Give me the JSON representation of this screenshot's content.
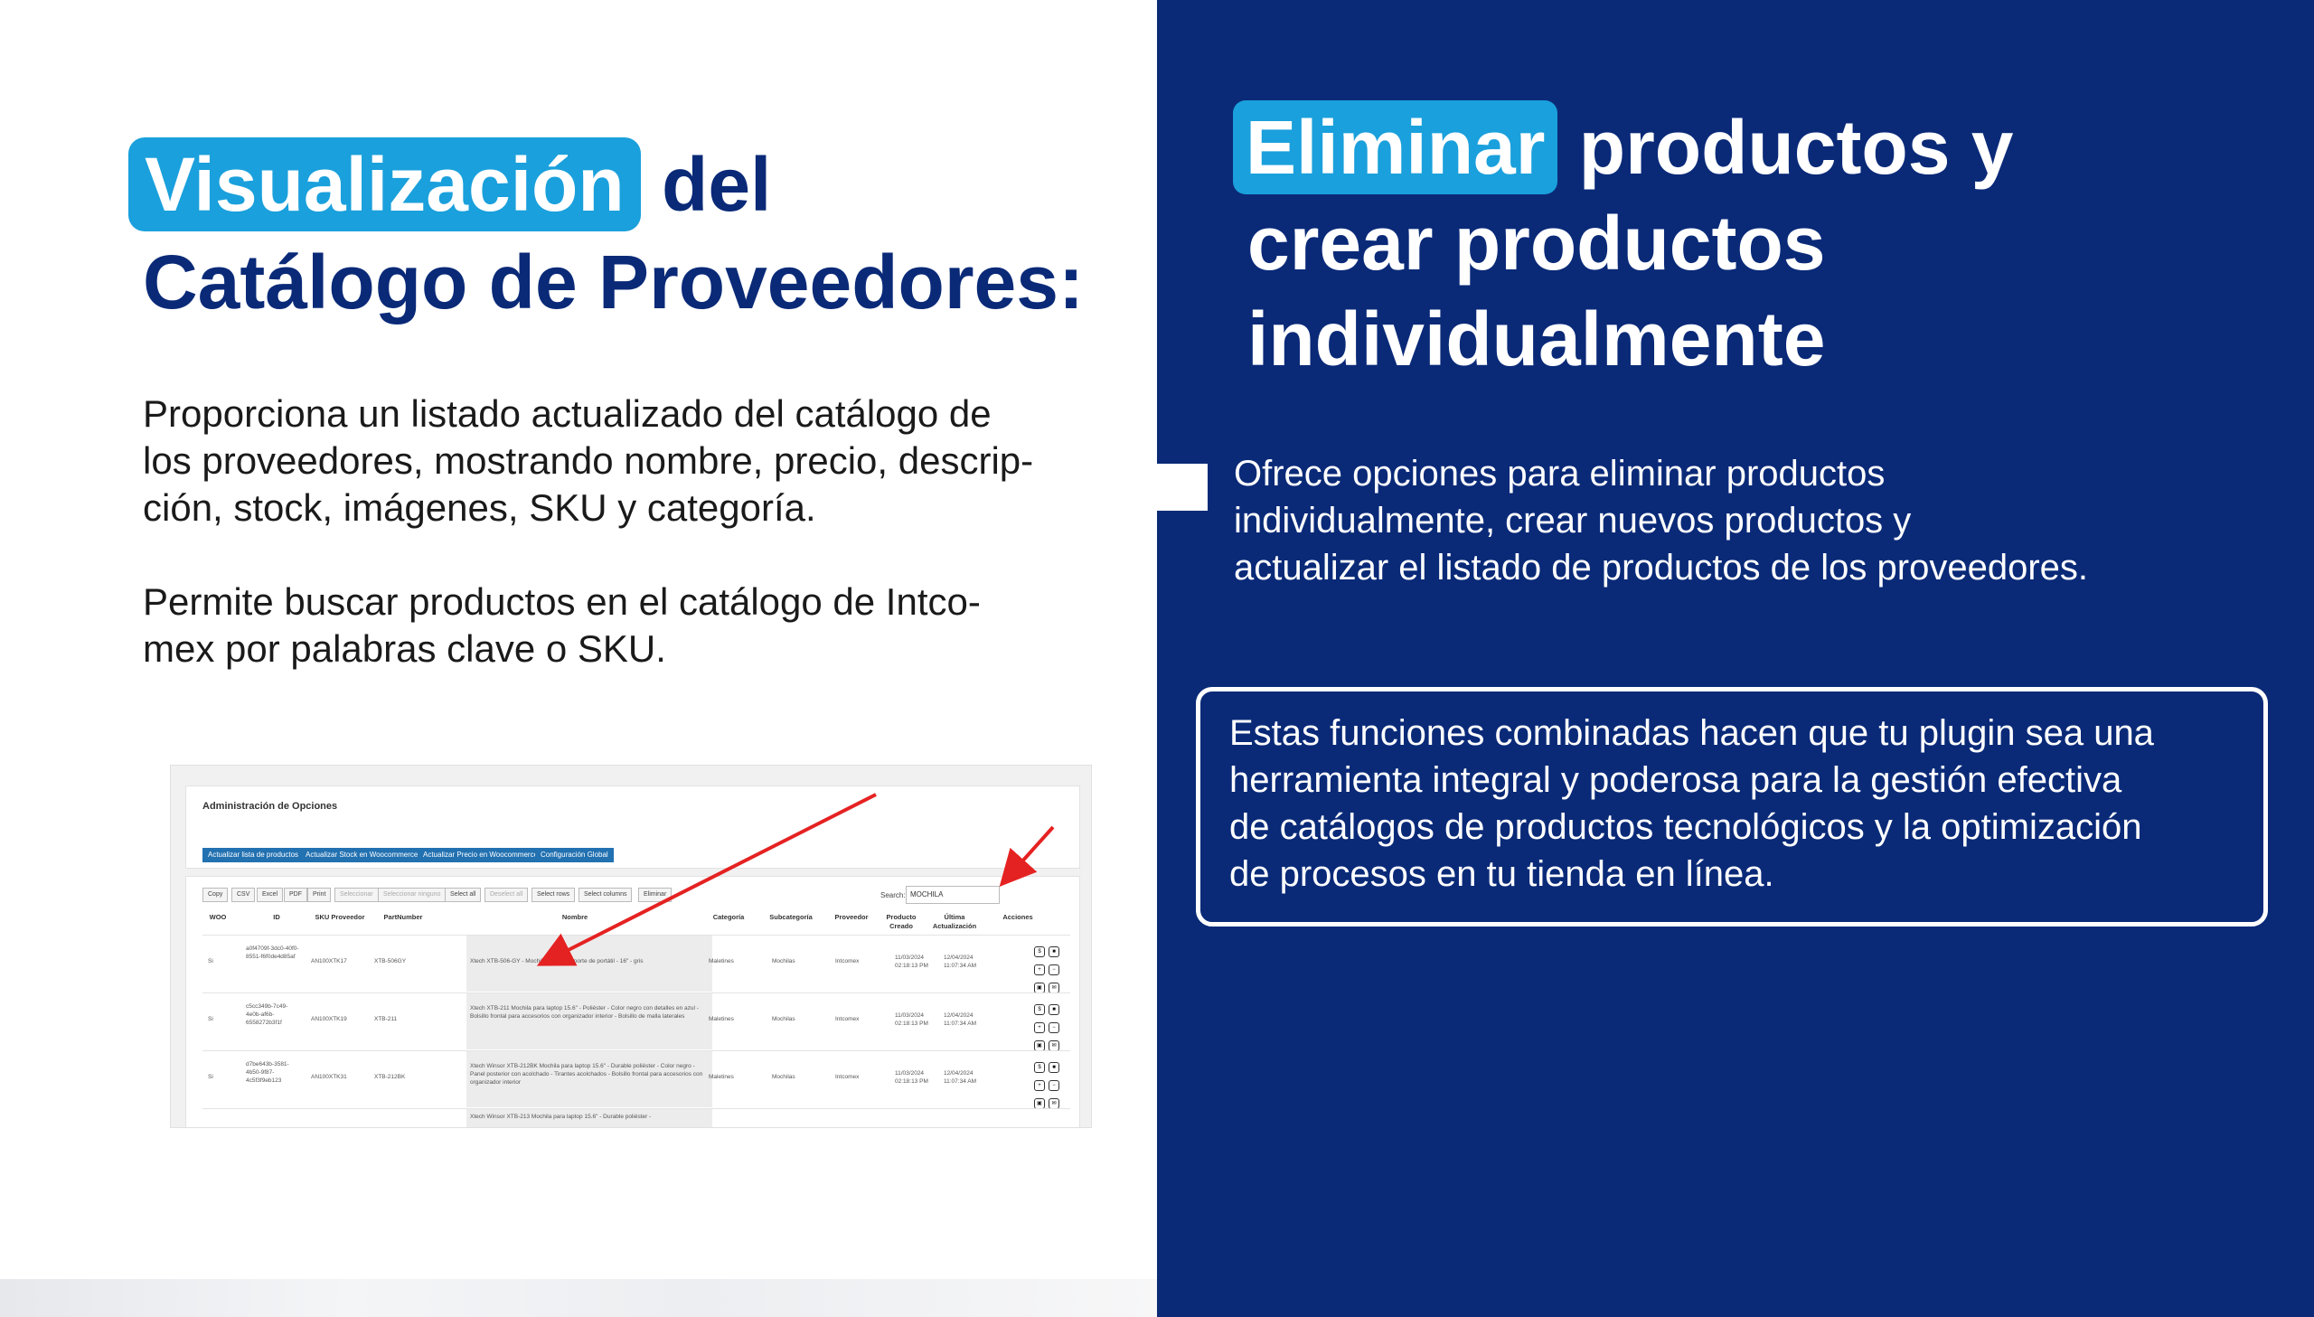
{
  "left": {
    "title_highlight": "Visualización",
    "title_rest_line1": "del",
    "title_line2": "Catálogo de Proveedores:",
    "paragraph1_lines": [
      "Proporciona un listado actualizado del catálogo de",
      "los proveedores, mostrando nombre, precio, descrip-",
      "ción, stock, imágenes, SKU y categoría."
    ],
    "paragraph2_lines": [
      "Permite buscar productos en el catálogo de Intco-",
      "mex por palabras clave o SKU."
    ]
  },
  "screenshot": {
    "panel_title": "Administración de Opciones",
    "option_buttons": [
      "Actualizar lista de productos",
      "Actualizar Stock en Woocommerce",
      "Actualizar Precio en Woocommerce",
      "Configuración Global"
    ],
    "table_buttons": [
      "Copy",
      "CSV",
      "Excel",
      "PDF",
      "Print",
      "Seleccionar",
      "Seleccionar ninguno",
      "Select all",
      "Deselect all",
      "Select rows",
      "Select columns",
      "Eliminar"
    ],
    "search_label": "Search:",
    "search_value": "MOCHILA",
    "columns": [
      "WOO",
      "ID",
      "SKU Proveedor",
      "PartNumber",
      "Nombre",
      "Categoría",
      "Subcategoría",
      "Proveedor",
      "Producto Creado",
      "Última Actualización",
      "Acciones"
    ],
    "rows": [
      {
        "woo": "Si",
        "id": "a0f4709f-3dc0-40f0-8551-f6f0de4d85af",
        "sku": "AN100XTK17",
        "part": "XTB-506GY",
        "name": "Xtech XTB-506-GY - Mochila para transporte de portátil - 16\" - gris",
        "cat": "Maletines",
        "sub": "Mochilas",
        "prov": "Intcomex",
        "created": "11/03/2024 02:18:13 PM",
        "updated": "12/04/2024 11:07:34 AM"
      },
      {
        "woo": "Si",
        "id": "c5cc349b-7c49-4e0b-af6b-6558272b3f1f",
        "sku": "AN100XTK19",
        "part": "XTB-211",
        "name": "Xtech XTB-211 Mochila para laptop 15.6\" - Poliéster - Color negro con detalles en azul - Bolsillo frontal para accesorios con organizador interior - Bolsillo de malla laterales",
        "cat": "Maletines",
        "sub": "Mochilas",
        "prov": "Intcomex",
        "created": "11/03/2024 02:18:13 PM",
        "updated": "12/04/2024 11:07:34 AM"
      },
      {
        "woo": "Si",
        "id": "d7be643b-3581-4b50-9f87-4c5f3f9eb123",
        "sku": "AN100XTK31",
        "part": "XTB-212BK",
        "name": "Xtech Winsor XTB-212BK Mochila para laptop 15.6\" - Durable poliéster - Color negro - Panel posterior con acolchado - Tirantes acolchados - Bolsillo frontal para accesorios con organizador interior",
        "cat": "Maletines",
        "sub": "Mochilas",
        "prov": "Intcomex",
        "created": "11/03/2024 02:18:13 PM",
        "updated": "12/04/2024 11:07:34 AM"
      }
    ],
    "row4_partial": "Xtech Winsor XTB-213 Mochila para laptop 15.6\" - Durable poliéster -"
  },
  "right": {
    "title_highlight": "Eliminar",
    "title_rest_line1": "productos y",
    "title_line2": "crear productos",
    "title_line3": "individualmente",
    "paragraph_lines": [
      "Ofrece opciones para eliminar productos",
      "individualmente, crear nuevos productos y",
      "actualizar el listado de productos de los proveedores."
    ],
    "box_lines": [
      "Estas funciones combinadas hacen que tu plugin sea una",
      "herramienta integral y poderosa para la gestión efectiva",
      "de catálogos de productos tecnológicos y la optimización",
      "de procesos en tu tienda en línea."
    ]
  },
  "colors": {
    "navy": "#0a2a78",
    "accent": "#1aa0dc",
    "arrow": "#e52222"
  }
}
